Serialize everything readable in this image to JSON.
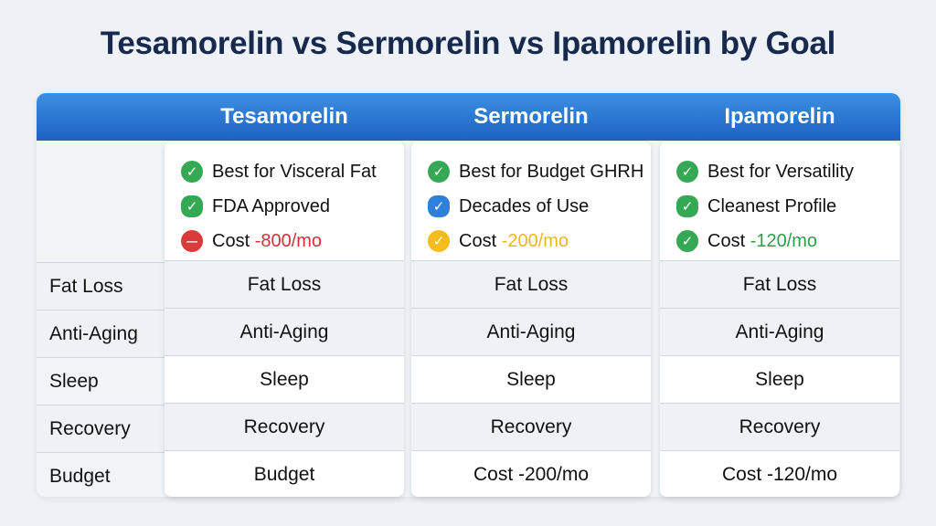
{
  "title": "Tesamorelin vs Sermorelin vs Ipamorelin by Goal",
  "rows": [
    "Fat Loss",
    "Anti-Aging",
    "Sleep",
    "Recovery",
    "Budget"
  ],
  "columns": [
    {
      "name": "Tesamorelin",
      "features": [
        {
          "icon": "check-circle-icon",
          "color": "#34a853",
          "text": "Best for Visceral Fat",
          "accent": ""
        },
        {
          "icon": "check-badge-icon",
          "color": "#34a853",
          "text": "FDA Approved",
          "accent": ""
        },
        {
          "icon": "minus-circle-icon",
          "color": "#d93a3a",
          "text": "Cost ",
          "accent": "-800/mo"
        }
      ],
      "cells": [
        "Fat Loss",
        "Anti-Aging",
        "Sleep",
        "Recovery",
        "Budget"
      ]
    },
    {
      "name": "Sermorelin",
      "features": [
        {
          "icon": "check-circle-icon",
          "color": "#34a853",
          "text": "Best for Budget GHRH",
          "accent": ""
        },
        {
          "icon": "check-badge-icon",
          "color": "#2f80d8",
          "text": "Decades of Use",
          "accent": ""
        },
        {
          "icon": "check-circle-icon",
          "color": "#f4bd1d",
          "text": "Cost ",
          "accent": "-200/mo"
        }
      ],
      "cells": [
        "Fat Loss",
        "Anti-Aging",
        "Sleep",
        "Recovery",
        "Cost -200/mo"
      ]
    },
    {
      "name": "Ipamorelin",
      "features": [
        {
          "icon": "check-circle-icon",
          "color": "#34a853",
          "text": "Best for Versatility",
          "accent": ""
        },
        {
          "icon": "check-badge-icon",
          "color": "#34a853",
          "text": "Cleanest Profile",
          "accent": ""
        },
        {
          "icon": "check-circle-icon",
          "color": "#34a853",
          "text": "Cost ",
          "accent": "-120/mo"
        }
      ],
      "cells": [
        "Fat Loss",
        "Anti-Aging",
        "Sleep",
        "Recovery",
        "Cost -120/mo"
      ]
    }
  ],
  "accent_colors": [
    "#c9353a",
    "#e8b820",
    "#2e9e4a"
  ],
  "gray_rows": [
    true,
    true,
    false,
    true,
    false
  ]
}
